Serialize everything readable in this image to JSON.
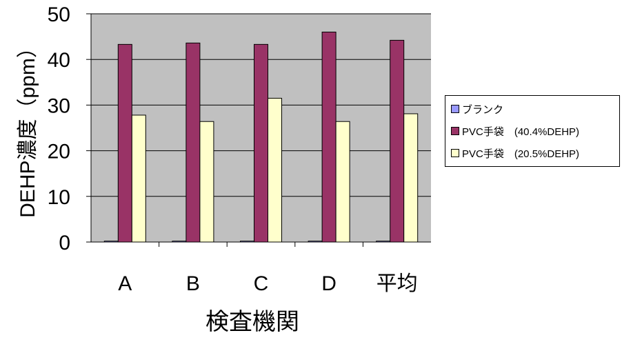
{
  "chart_data": {
    "type": "bar",
    "ylabel": "DEHP濃度（ppm）",
    "xlabel": "検査機関",
    "categories": [
      "A",
      "B",
      "C",
      "D",
      "平均"
    ],
    "ylim": [
      0,
      50
    ],
    "yticks": [
      "0",
      "10",
      "20",
      "30",
      "40",
      "50"
    ],
    "grid": true,
    "legend_position": "right",
    "series": [
      {
        "name": "ブランク",
        "values": [
          0.2,
          0.2,
          0.2,
          0.2,
          0.2
        ],
        "color": "#9999ff"
      },
      {
        "name": "PVC手袋　(40.4%DEHP)",
        "values": [
          43.3,
          43.6,
          43.3,
          46.0,
          44.2
        ],
        "color": "#993366"
      },
      {
        "name": "PVC手袋　(20.5%DEHP)",
        "values": [
          27.8,
          26.4,
          31.5,
          26.4,
          28.1
        ],
        "color": "#ffffcc"
      }
    ],
    "plot_background": "#c0c0c0"
  }
}
